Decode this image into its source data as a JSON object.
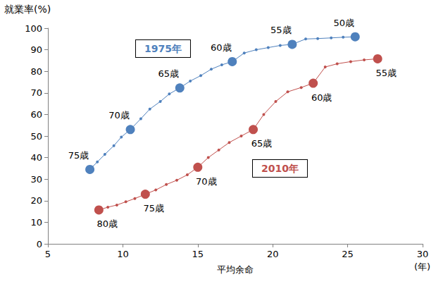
{
  "chart_data": {
    "type": "line",
    "y_label": "就業率(%)",
    "x_label": "平均余命",
    "x_unit": "(年)",
    "xlim": [
      5,
      30
    ],
    "xticks": [
      5,
      10,
      15,
      20,
      25,
      30
    ],
    "ylim": [
      0,
      100
    ],
    "yticks": [
      0,
      10,
      20,
      30,
      40,
      50,
      60,
      70,
      80,
      90,
      100
    ],
    "grid": false,
    "marker": "circle",
    "series": [
      {
        "name": "1975年",
        "color": "#4f81bd",
        "x": [
          25.5,
          24.7,
          23.9,
          23.0,
          22.2,
          21.3,
          20.5,
          19.7,
          18.9,
          18.1,
          17.3,
          16.6,
          15.9,
          15.2,
          14.5,
          13.8,
          13.1,
          12.5,
          11.8,
          11.2,
          10.5,
          9.9,
          9.4,
          8.8,
          8.3,
          7.8
        ],
        "values": [
          96,
          95.8,
          95.5,
          95.2,
          95.0,
          92.5,
          92,
          91,
          90,
          88.5,
          84.5,
          83,
          81,
          78,
          75.5,
          72.3,
          69.5,
          66,
          62.5,
          58,
          53,
          49.5,
          45.5,
          41.5,
          38,
          34.5
        ],
        "point_labels": [
          "50歳",
          null,
          null,
          null,
          null,
          "55歳",
          null,
          null,
          null,
          null,
          "60歳",
          null,
          null,
          null,
          null,
          "65歳",
          null,
          null,
          null,
          null,
          "70歳",
          null,
          null,
          null,
          null,
          "75歳"
        ]
      },
      {
        "name": "2010年",
        "color": "#c0504d",
        "x": [
          27.0,
          26.1,
          25.2,
          24.3,
          23.5,
          22.7,
          21.9,
          21.0,
          20.2,
          19.4,
          18.7,
          17.9,
          17.1,
          16.4,
          15.7,
          15.0,
          14.3,
          13.6,
          12.9,
          12.2,
          11.5,
          10.8,
          10.2,
          9.6,
          9.0,
          8.4
        ],
        "values": [
          85.8,
          85.3,
          84.5,
          83.5,
          82,
          74.5,
          72.5,
          70.5,
          66,
          60,
          53,
          50,
          47,
          43.5,
          40,
          35.5,
          32,
          29.5,
          27.5,
          25,
          23,
          21,
          19.5,
          18,
          17,
          15.7
        ],
        "point_labels": [
          "55歳",
          null,
          null,
          null,
          null,
          "60歳",
          null,
          null,
          null,
          null,
          "65歳",
          null,
          null,
          null,
          null,
          "70歳",
          null,
          null,
          null,
          null,
          "75歳",
          null,
          null,
          null,
          null,
          "80歳"
        ]
      }
    ]
  }
}
